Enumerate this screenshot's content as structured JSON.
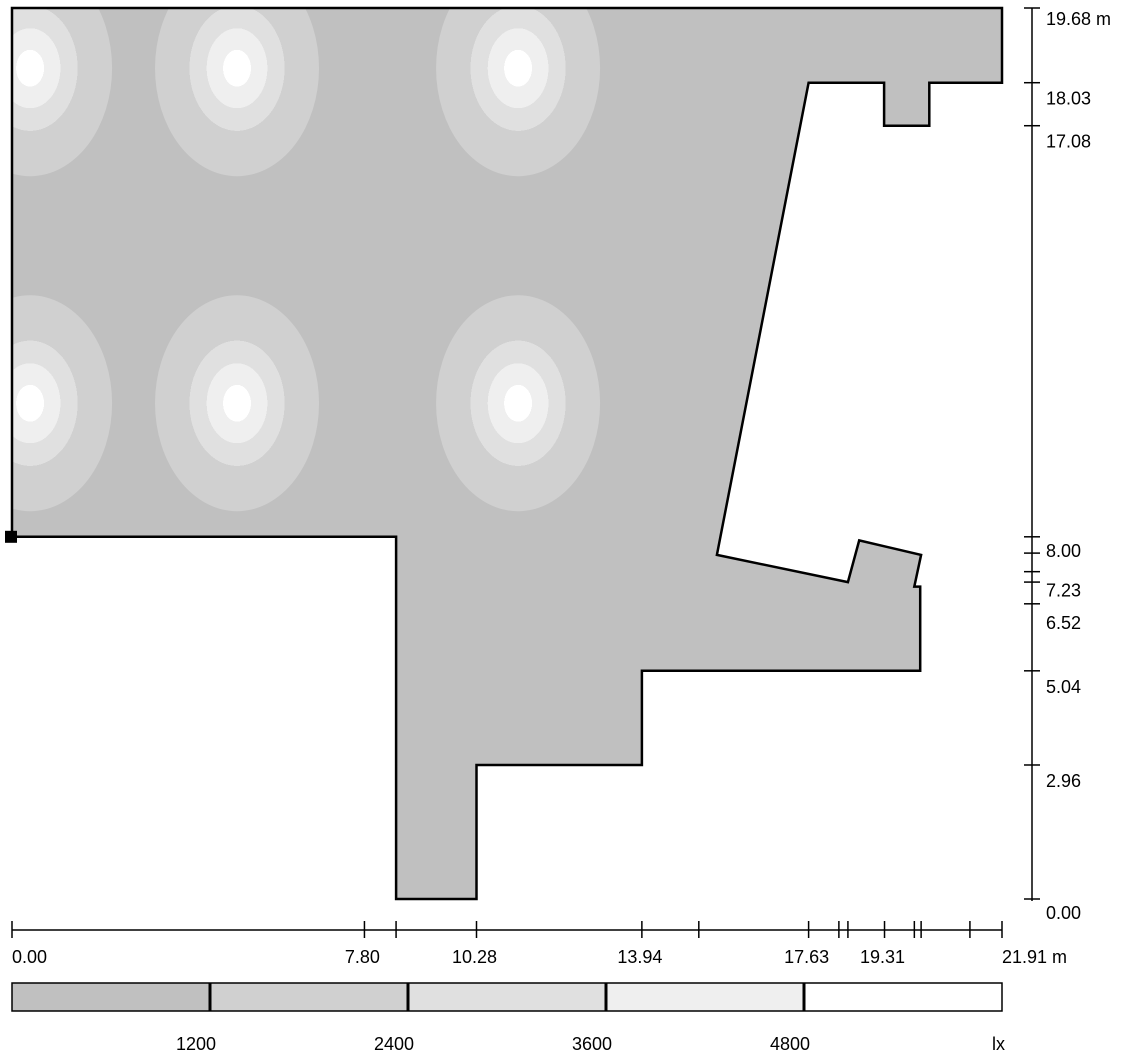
{
  "room": {
    "outline": [
      [
        0,
        8.0
      ],
      [
        0,
        19.68
      ],
      [
        21.91,
        19.68
      ],
      [
        21.91,
        18.03
      ],
      [
        20.3,
        18.03
      ],
      [
        20.3,
        17.08
      ],
      [
        19.3,
        17.08
      ],
      [
        19.3,
        18.03
      ],
      [
        17.63,
        18.03
      ],
      [
        15.6,
        7.6
      ],
      [
        18.5,
        7.0
      ],
      [
        18.75,
        7.92
      ],
      [
        20.12,
        7.6
      ],
      [
        19.97,
        6.9
      ],
      [
        20.1,
        6.9
      ],
      [
        20.1,
        5.04
      ],
      [
        13.94,
        5.04
      ],
      [
        13.94,
        2.96
      ],
      [
        10.28,
        2.96
      ],
      [
        10.28,
        0
      ],
      [
        8.5,
        0
      ],
      [
        8.5,
        8.0
      ]
    ],
    "luminaire_peaks": [
      [
        0.4,
        18.35
      ],
      [
        4.98,
        18.35
      ],
      [
        11.2,
        18.35
      ],
      [
        0.4,
        10.95
      ],
      [
        4.98,
        10.95
      ],
      [
        11.2,
        10.95
      ]
    ],
    "reference_marker": [
      0,
      8.0
    ]
  },
  "x_axis": {
    "unit_label": "21.91 m",
    "labels": [
      "0.00",
      "7.80",
      "10.28",
      "13.94",
      "17.63",
      "19.31"
    ],
    "label_values": [
      0.0,
      7.8,
      10.28,
      13.94,
      17.63,
      19.31
    ],
    "ticks": [
      0,
      7.8,
      8.5,
      10.28,
      13.94,
      15.2,
      17.63,
      18.3,
      18.5,
      19.31,
      19.97,
      20.12,
      21.2,
      21.91
    ]
  },
  "y_axis": {
    "unit_label": "19.68 m",
    "labels": [
      "18.03",
      "17.08",
      "8.00",
      "7.23",
      "6.52",
      "5.04",
      "2.96",
      "0.00"
    ],
    "label_values": [
      18.03,
      17.08,
      8.0,
      7.23,
      6.52,
      5.04,
      2.96,
      0.0
    ],
    "ticks": [
      19.68,
      18.03,
      17.08,
      8.0,
      7.64,
      7.23,
      7.0,
      6.52,
      5.04,
      2.96,
      0.0
    ]
  },
  "legend": {
    "unit": "lx",
    "thresholds": [
      "1200",
      "2400",
      "3600",
      "4800"
    ],
    "colors": [
      "#c0c0c0",
      "#d0d0d0",
      "#e0e0e0",
      "#efefef",
      "#ffffff"
    ]
  }
}
